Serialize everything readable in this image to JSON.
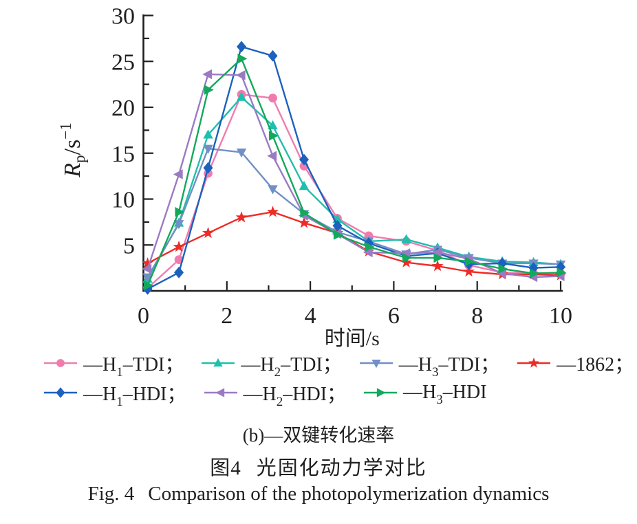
{
  "figure": {
    "panel_caption": "(b)—双键转化速率",
    "caption_zh_prefix": "图4",
    "caption_zh": "光固化动力学对比",
    "caption_en_prefix": "Fig. 4",
    "caption_en": "Comparison of the photopolymerization dynamics"
  },
  "chart_data": {
    "type": "line",
    "title": "",
    "xlabel": "时间/s",
    "ylabel": "Rp/s⁻¹",
    "ylabel_parts": {
      "base": "R",
      "sub": "p",
      "mid": "/s",
      "sup": "−1"
    },
    "xlim": [
      0,
      10
    ],
    "ylim": [
      0,
      30
    ],
    "x_major_ticks": [
      0,
      2,
      4,
      6,
      8,
      10
    ],
    "x_minor_ticks": [
      1,
      3,
      5,
      7,
      9
    ],
    "y_major_ticks": [
      5,
      10,
      15,
      20,
      25,
      30
    ],
    "y_minor_ticks": [
      2.5,
      7.5,
      12.5,
      17.5,
      22.5,
      27.5
    ],
    "grid": false,
    "legend_position": "below",
    "axis_color": "#1f1f1f",
    "x": [
      0.1,
      0.85,
      1.55,
      2.35,
      3.1,
      3.85,
      4.65,
      5.4,
      6.3,
      7.05,
      7.8,
      8.6,
      9.35,
      10
    ],
    "series": [
      {
        "name": "H1-TDI",
        "label_parts": [
          "—H",
          "1",
          "–TDI；"
        ],
        "color": "#F07CAE",
        "marker": "circle",
        "values": [
          0.3,
          3.4,
          12.8,
          21.4,
          21.0,
          13.6,
          7.9,
          6.0,
          5.4,
          4.4,
          2.8,
          2.0,
          1.9,
          1.9
        ]
      },
      {
        "name": "H2-TDI",
        "label_parts": [
          "—H",
          "2",
          "–TDI；"
        ],
        "color": "#1FBFAD",
        "marker": "triangle-up",
        "values": [
          1.3,
          7.4,
          17.0,
          21.1,
          18.0,
          11.4,
          7.8,
          5.4,
          5.6,
          4.7,
          3.7,
          3.2,
          3.1,
          2.9
        ]
      },
      {
        "name": "H3-TDI",
        "label_parts": [
          "—H",
          "3",
          "–TDI；"
        ],
        "color": "#7090C6",
        "marker": "triangle-down",
        "values": [
          1.5,
          7.3,
          15.5,
          15.1,
          11.1,
          8.4,
          6.4,
          5.4,
          4.0,
          4.5,
          3.6,
          3.0,
          3.0,
          2.9
        ]
      },
      {
        "name": "1862",
        "label_parts": [
          "—1862；"
        ],
        "color": "#EE2B26",
        "marker": "star",
        "values": [
          3.0,
          4.8,
          6.3,
          8.0,
          8.6,
          7.4,
          6.3,
          4.3,
          3.1,
          2.7,
          2.1,
          1.8,
          1.8,
          1.7
        ]
      },
      {
        "name": "H1-HDI",
        "label_parts": [
          "—H",
          "1",
          "–HDI；"
        ],
        "color": "#1B61BD",
        "marker": "diamond",
        "values": [
          0.2,
          2.0,
          13.4,
          26.6,
          25.6,
          14.3,
          7.1,
          5.2,
          3.8,
          4.1,
          2.9,
          3.0,
          2.5,
          2.6
        ]
      },
      {
        "name": "H2-HDI",
        "label_parts": [
          "—H",
          "2",
          "–HDI；"
        ],
        "color": "#9B7AC4",
        "marker": "triangle-left",
        "values": [
          2.4,
          12.7,
          23.6,
          23.5,
          14.7,
          8.2,
          6.2,
          4.2,
          4.1,
          4.2,
          3.5,
          1.9,
          1.5,
          1.6
        ]
      },
      {
        "name": "H3-HDI",
        "label_parts": [
          "—H",
          "3",
          "–HDI"
        ],
        "color": "#13A85C",
        "marker": "triangle-right",
        "values": [
          0.6,
          8.6,
          21.9,
          25.3,
          16.9,
          8.5,
          6.1,
          4.8,
          3.6,
          3.6,
          3.2,
          2.4,
          1.9,
          2.0
        ]
      }
    ],
    "legend_rows": [
      [
        "H1-TDI",
        "H2-TDI",
        "H3-TDI",
        "1862"
      ],
      [
        "H1-HDI",
        "H2-HDI",
        "H3-HDI"
      ]
    ]
  }
}
